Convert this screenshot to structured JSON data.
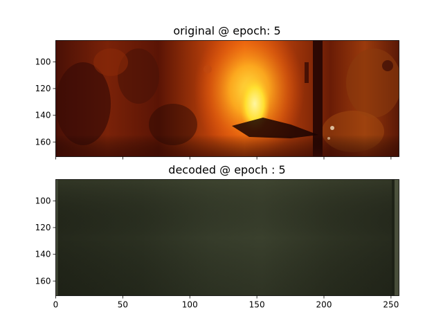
{
  "chart_data": [
    {
      "type": "image",
      "title": "original @ epoch: 5",
      "xlim": [
        0,
        256
      ],
      "ylim": [
        171,
        84
      ],
      "xticks": [
        0,
        50,
        100,
        150,
        200,
        250
      ],
      "yticks": [
        100,
        120,
        140,
        160
      ],
      "show_x_tick_labels": false,
      "content": "reddish-orange fire scene with bright yellow flame near center bottom",
      "colors": {
        "dark": "#3a0c05",
        "mid": "#8a2a08",
        "bright": "#e85a0c",
        "flame": "#ffd02a",
        "core": "#fff38a"
      }
    },
    {
      "type": "image",
      "title": "decoded @ epoch : 5",
      "xlim": [
        0,
        256
      ],
      "ylim": [
        171,
        84
      ],
      "xticks": [
        0,
        50,
        100,
        150,
        200,
        250
      ],
      "yticks": [
        100,
        120,
        140,
        160
      ],
      "show_x_tick_labels": true,
      "content": "nearly uniform dark olive-grey reconstruction",
      "colors": {
        "dark": "#262a1d",
        "mid": "#333828",
        "light": "#3f4531"
      }
    }
  ]
}
